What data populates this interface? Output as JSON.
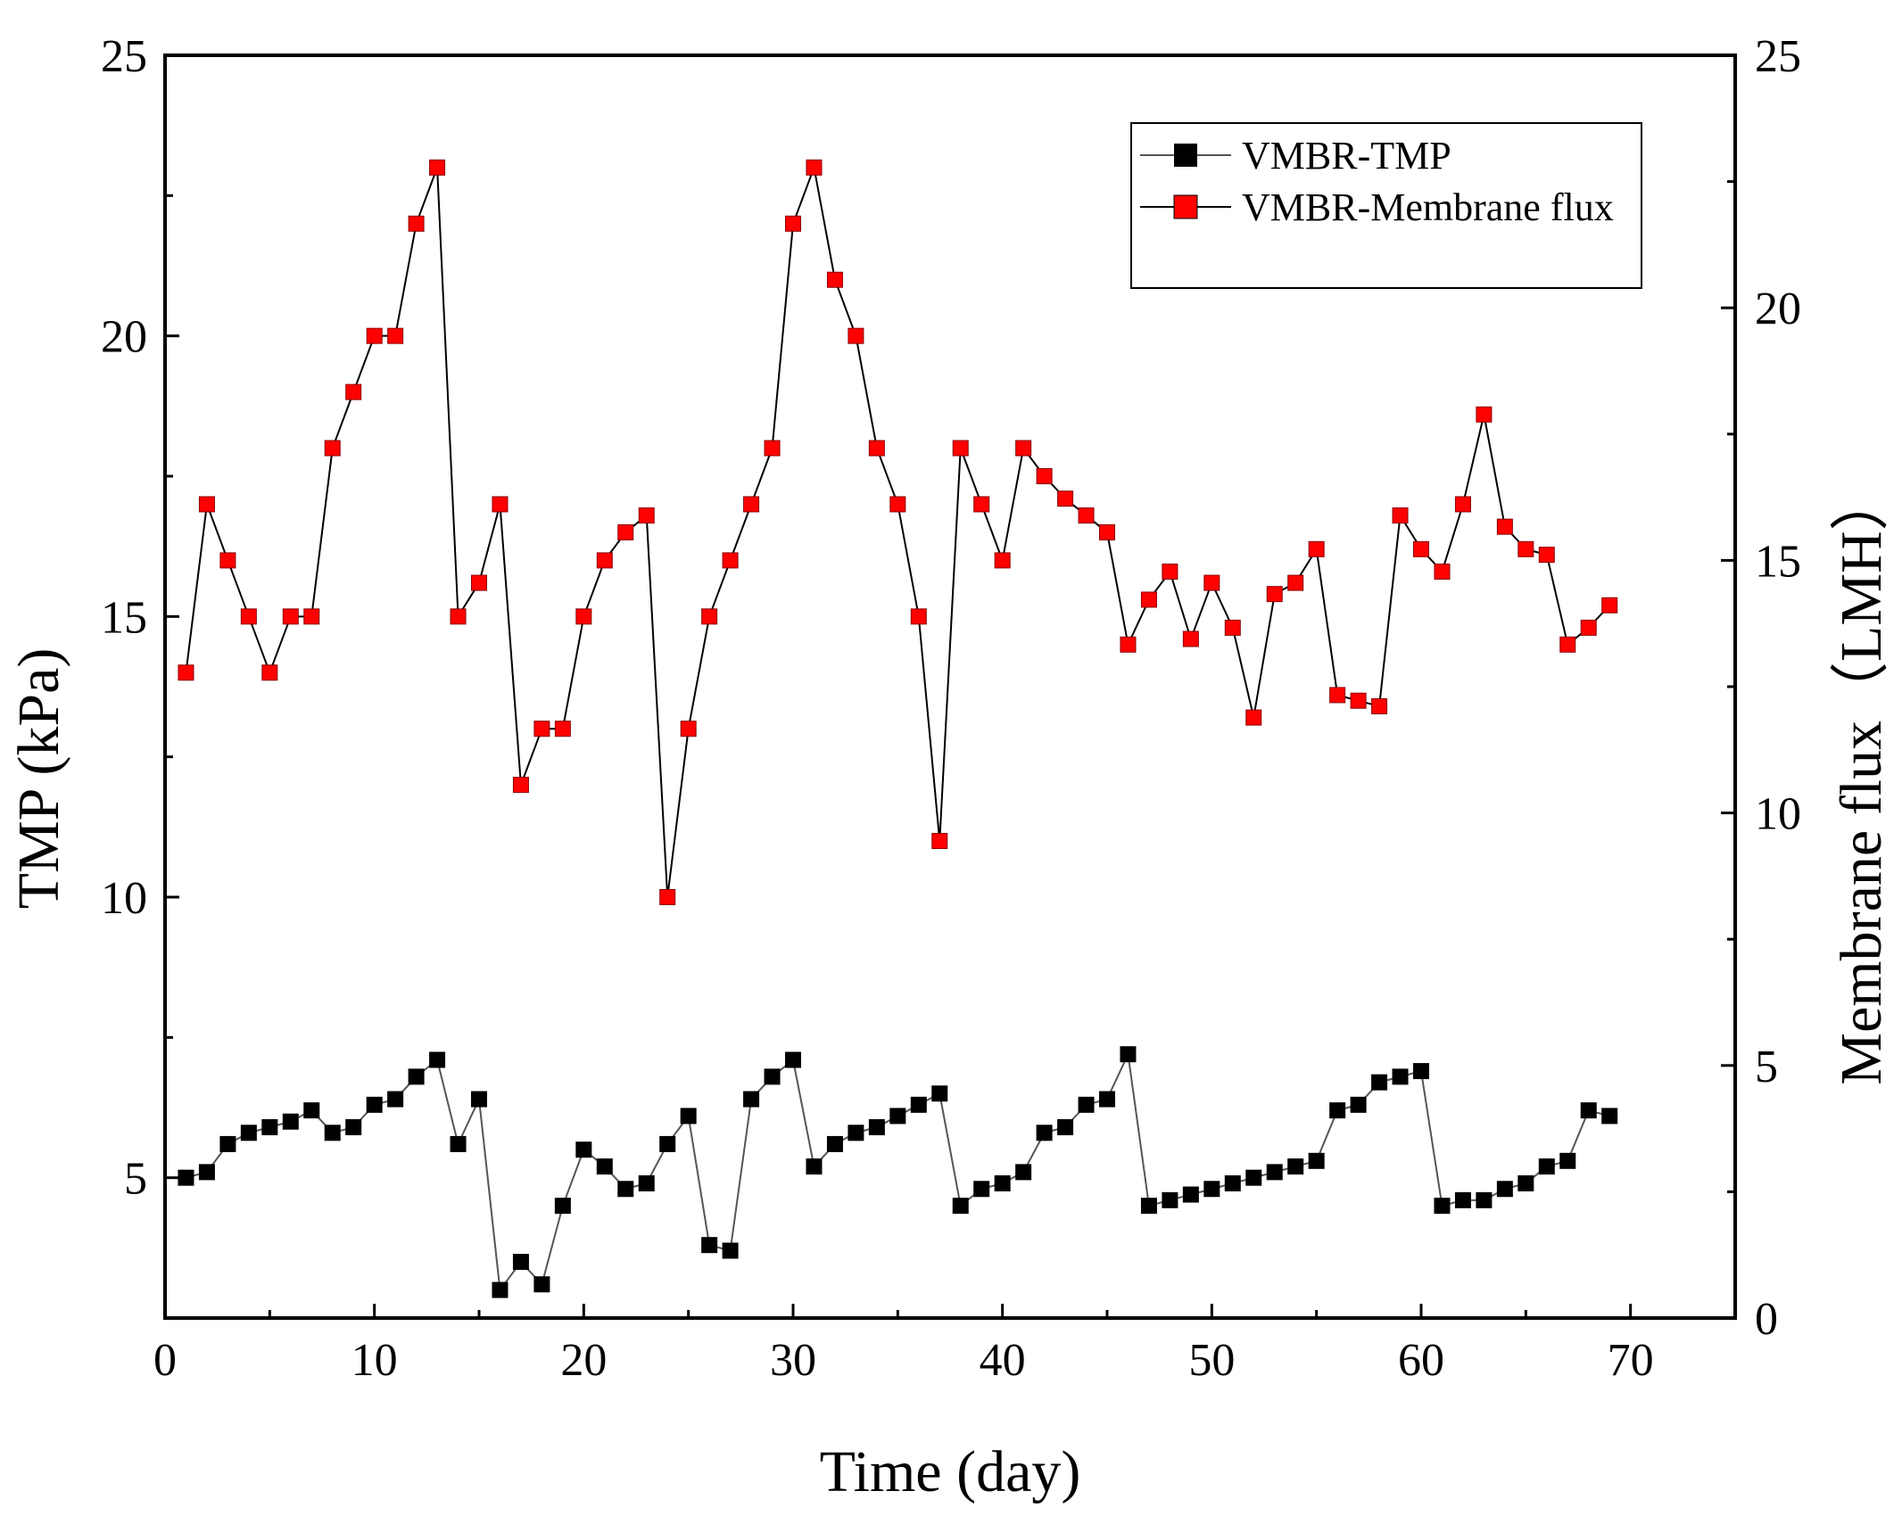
{
  "chart_data": {
    "type": "line",
    "xlabel": "Time (day)",
    "ylabel_left": "TMP (kPa)",
    "ylabel_right": "Membrane flux（LMH）",
    "xlim": [
      0,
      75
    ],
    "ylim_left": [
      2.5,
      25
    ],
    "ylim_right": [
      0,
      25
    ],
    "x_ticks": [
      "0",
      "10",
      "20",
      "30",
      "40",
      "50",
      "60",
      "70"
    ],
    "y_left_ticks": [
      "5",
      "10",
      "15",
      "20",
      "25"
    ],
    "y_right_ticks": [
      "0",
      "5",
      "10",
      "15",
      "20",
      "25"
    ],
    "legend": {
      "placement": "top-right"
    },
    "series": [
      {
        "name": "VMBR-TMP",
        "axis": "left",
        "color": "#000000",
        "line_color": "#555555",
        "marker": "square",
        "x": [
          1,
          2,
          3,
          4,
          5,
          6,
          7,
          8,
          9,
          10,
          11,
          12,
          13,
          14,
          15,
          16,
          17,
          18,
          19,
          20,
          21,
          22,
          23,
          24,
          25,
          26,
          27,
          28,
          29,
          30,
          31,
          32,
          33,
          34,
          35,
          36,
          37,
          38,
          39,
          40,
          41,
          42,
          43,
          44,
          45,
          46,
          47,
          48,
          49,
          50,
          51,
          52,
          53,
          54,
          55,
          56,
          57,
          58,
          59,
          60,
          61,
          62,
          63,
          64,
          65,
          66,
          67,
          68,
          69
        ],
        "values": [
          5.0,
          5.1,
          5.6,
          5.8,
          5.9,
          6.0,
          6.2,
          5.8,
          5.9,
          6.3,
          6.4,
          6.8,
          7.1,
          5.6,
          6.4,
          3.0,
          3.5,
          3.1,
          4.5,
          5.5,
          5.2,
          4.8,
          4.9,
          5.6,
          6.1,
          3.8,
          3.7,
          6.4,
          6.8,
          7.1,
          5.2,
          5.6,
          5.8,
          5.9,
          6.1,
          6.3,
          6.5,
          4.5,
          4.8,
          4.9,
          5.1,
          5.8,
          5.9,
          6.3,
          6.4,
          7.2,
          4.5,
          4.6,
          4.7,
          4.8,
          4.9,
          5.0,
          5.1,
          5.2,
          5.3,
          6.2,
          6.3,
          6.7,
          6.8,
          6.9,
          4.5,
          4.6,
          4.6,
          4.8,
          4.9,
          5.2,
          5.3,
          6.2,
          6.1
        ]
      },
      {
        "name": "VMBR-Membrane flux",
        "axis": "left",
        "color": "#ff0000",
        "line_color": "#000000",
        "marker": "square",
        "x": [
          1,
          2,
          3,
          4,
          5,
          6,
          7,
          8,
          9,
          10,
          11,
          12,
          13,
          14,
          15,
          16,
          17,
          18,
          19,
          20,
          21,
          22,
          23,
          24,
          25,
          26,
          27,
          28,
          29,
          30,
          31,
          32,
          33,
          34,
          35,
          36,
          37,
          38,
          39,
          40,
          41,
          42,
          43,
          44,
          45,
          46,
          47,
          48,
          49,
          50,
          51,
          52,
          53,
          54,
          55,
          56,
          57,
          58,
          59,
          60,
          61,
          62,
          63,
          64,
          65,
          66,
          67,
          68,
          69
        ],
        "values": [
          14.0,
          17.0,
          16.0,
          15.0,
          14.0,
          15.0,
          15.0,
          18.0,
          19.0,
          20.0,
          20.0,
          22.0,
          23.0,
          15.0,
          15.6,
          17.0,
          12.0,
          13.0,
          13.0,
          15.0,
          16.0,
          16.5,
          16.8,
          10.0,
          13.0,
          15.0,
          16.0,
          17.0,
          18.0,
          22.0,
          23.0,
          21.0,
          20.0,
          18.0,
          17.0,
          15.0,
          11.0,
          18.0,
          17.0,
          16.0,
          18.0,
          17.5,
          17.1,
          16.8,
          16.5,
          14.5,
          15.3,
          15.8,
          14.6,
          15.6,
          14.8,
          13.2,
          15.4,
          15.6,
          16.2,
          13.6,
          13.5,
          13.4,
          16.8,
          16.2,
          15.8,
          17.0,
          18.6,
          16.6,
          16.2,
          16.1,
          14.5,
          14.8,
          15.2
        ]
      }
    ]
  }
}
